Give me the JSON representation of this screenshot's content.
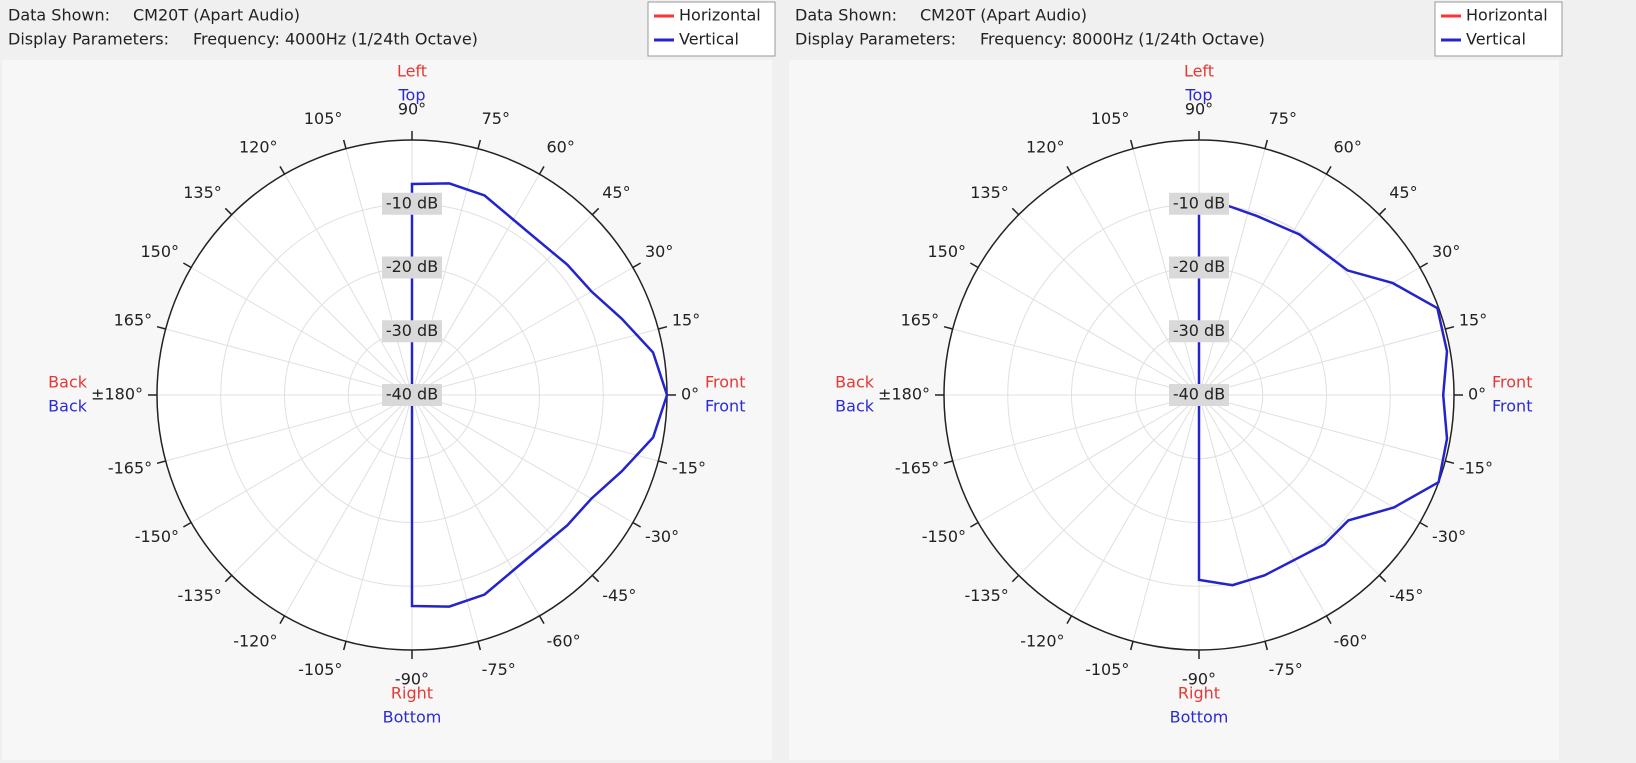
{
  "chart_data": [
    {
      "type": "polar",
      "header": [
        "Data Shown:",
        "CM20T (Apart Audio)",
        "Display Parameters:",
        "Frequency: 4000Hz (1/24th Octave)"
      ],
      "directions": [
        {
          "side": "top",
          "labels": [
            {
              "text": "Left",
              "color": "#e53935"
            },
            {
              "text": "Top",
              "color": "#2b2bd6"
            }
          ]
        },
        {
          "side": "bottom",
          "labels": [
            {
              "text": "Right",
              "color": "#e53935"
            },
            {
              "text": "Bottom",
              "color": "#2b2bd6"
            }
          ]
        },
        {
          "side": "left",
          "labels": [
            {
              "text": "Back",
              "color": "#e53935"
            },
            {
              "text": "Back",
              "color": "#2b2bd6"
            }
          ]
        },
        {
          "side": "right",
          "labels": [
            {
              "text": "Front",
              "color": "#e53935"
            },
            {
              "text": "Front",
              "color": "#2b2bd6"
            }
          ]
        }
      ],
      "xlim": [
        -180,
        180
      ],
      "xticks": [
        {
          "value": 0,
          "label": "0°"
        },
        {
          "value": 15,
          "label": "15°"
        },
        {
          "value": 30,
          "label": "30°"
        },
        {
          "value": 45,
          "label": "45°"
        },
        {
          "value": 60,
          "label": "60°"
        },
        {
          "value": 75,
          "label": "75°"
        },
        {
          "value": 90,
          "label": "90°"
        },
        {
          "value": 105,
          "label": "105°"
        },
        {
          "value": 120,
          "label": "120°"
        },
        {
          "value": 135,
          "label": "135°"
        },
        {
          "value": 150,
          "label": "150°"
        },
        {
          "value": 165,
          "label": "165°"
        },
        {
          "value": 180,
          "label": "±180°"
        },
        {
          "value": -165,
          "label": "-165°"
        },
        {
          "value": -150,
          "label": "-150°"
        },
        {
          "value": -135,
          "label": "-135°"
        },
        {
          "value": -120,
          "label": "-120°"
        },
        {
          "value": -105,
          "label": "-105°"
        },
        {
          "value": -90,
          "label": "-90°"
        },
        {
          "value": -75,
          "label": "-75°"
        },
        {
          "value": -60,
          "label": "-60°"
        },
        {
          "value": -45,
          "label": "-45°"
        },
        {
          "value": -30,
          "label": "-30°"
        },
        {
          "value": -15,
          "label": "-15°"
        }
      ],
      "ylim": [
        -40,
        0
      ],
      "yticks": [
        {
          "value": -10,
          "label": "-10 dB"
        },
        {
          "value": -20,
          "label": "-20 dB"
        },
        {
          "value": -30,
          "label": "-30 dB"
        },
        {
          "value": -40,
          "label": "-40 dB"
        }
      ],
      "x": [
        -90,
        -80,
        -70,
        -55,
        -40,
        -30,
        -20,
        -10,
        0,
        10,
        20,
        30,
        40,
        55,
        70,
        80,
        90
      ],
      "series": [
        {
          "name": "Horizontal",
          "color": "#ff3333"
        },
        {
          "name": "Vertical",
          "color": "#2424cc",
          "values": [
            -6.9,
            -6.3,
            -6.7,
            -8.6,
            -8.2,
            -7.5,
            -5.0,
            -1.6,
            0,
            -1.6,
            -5.0,
            -7.5,
            -8.2,
            -8.6,
            -6.7,
            -6.3,
            -6.9
          ]
        }
      ]
    },
    {
      "type": "polar",
      "header": [
        "Data Shown:",
        "CM20T (Apart Audio)",
        "Display Parameters:",
        "Frequency: 8000Hz (1/24th Octave)"
      ],
      "directions": [
        {
          "side": "top",
          "labels": [
            {
              "text": "Left",
              "color": "#e53935"
            },
            {
              "text": "Top",
              "color": "#2b2bd6"
            }
          ]
        },
        {
          "side": "bottom",
          "labels": [
            {
              "text": "Right",
              "color": "#e53935"
            },
            {
              "text": "Bottom",
              "color": "#2b2bd6"
            }
          ]
        },
        {
          "side": "left",
          "labels": [
            {
              "text": "Back",
              "color": "#e53935"
            },
            {
              "text": "Back",
              "color": "#2b2bd6"
            }
          ]
        },
        {
          "side": "right",
          "labels": [
            {
              "text": "Front",
              "color": "#e53935"
            },
            {
              "text": "Front",
              "color": "#2b2bd6"
            }
          ]
        }
      ],
      "xlim": [
        -180,
        180
      ],
      "xticks": [
        {
          "value": 0,
          "label": "0°"
        },
        {
          "value": 15,
          "label": "15°"
        },
        {
          "value": 30,
          "label": "30°"
        },
        {
          "value": 45,
          "label": "45°"
        },
        {
          "value": 60,
          "label": "60°"
        },
        {
          "value": 75,
          "label": "75°"
        },
        {
          "value": 90,
          "label": "90°"
        },
        {
          "value": 105,
          "label": "105°"
        },
        {
          "value": 120,
          "label": "120°"
        },
        {
          "value": 135,
          "label": "135°"
        },
        {
          "value": 150,
          "label": "150°"
        },
        {
          "value": 165,
          "label": "165°"
        },
        {
          "value": 180,
          "label": "±180°"
        },
        {
          "value": -165,
          "label": "-165°"
        },
        {
          "value": -150,
          "label": "-150°"
        },
        {
          "value": -135,
          "label": "-135°"
        },
        {
          "value": -120,
          "label": "-120°"
        },
        {
          "value": -105,
          "label": "-105°"
        },
        {
          "value": -90,
          "label": "-90°"
        },
        {
          "value": -75,
          "label": "-75°"
        },
        {
          "value": -60,
          "label": "-60°"
        },
        {
          "value": -45,
          "label": "-45°"
        },
        {
          "value": -30,
          "label": "-30°"
        },
        {
          "value": -15,
          "label": "-15°"
        }
      ],
      "ylim": [
        -40,
        0
      ],
      "yticks": [
        {
          "value": -10,
          "label": "-10 dB"
        },
        {
          "value": -20,
          "label": "-20 dB"
        },
        {
          "value": -30,
          "label": "-30 dB"
        },
        {
          "value": -40,
          "label": "-40 dB"
        }
      ],
      "x": [
        -90,
        -80,
        -70,
        -50,
        -40,
        -30,
        -20,
        -10,
        0,
        10,
        20,
        30,
        40,
        58,
        72,
        81,
        90
      ],
      "series": [
        {
          "name": "Horizontal",
          "color": "#ff3333"
        },
        {
          "name": "Vertical",
          "color": "#2424cc",
          "values": [
            -11.0,
            -9.7,
            -9.9,
            -9.4,
            -9.4,
            -4.7,
            0,
            -0.5,
            -1.7,
            -0.5,
            -0.2,
            -4.9,
            -9.6,
            -10.3,
            -10.5,
            -10.0,
            -11.0
          ]
        }
      ]
    }
  ]
}
